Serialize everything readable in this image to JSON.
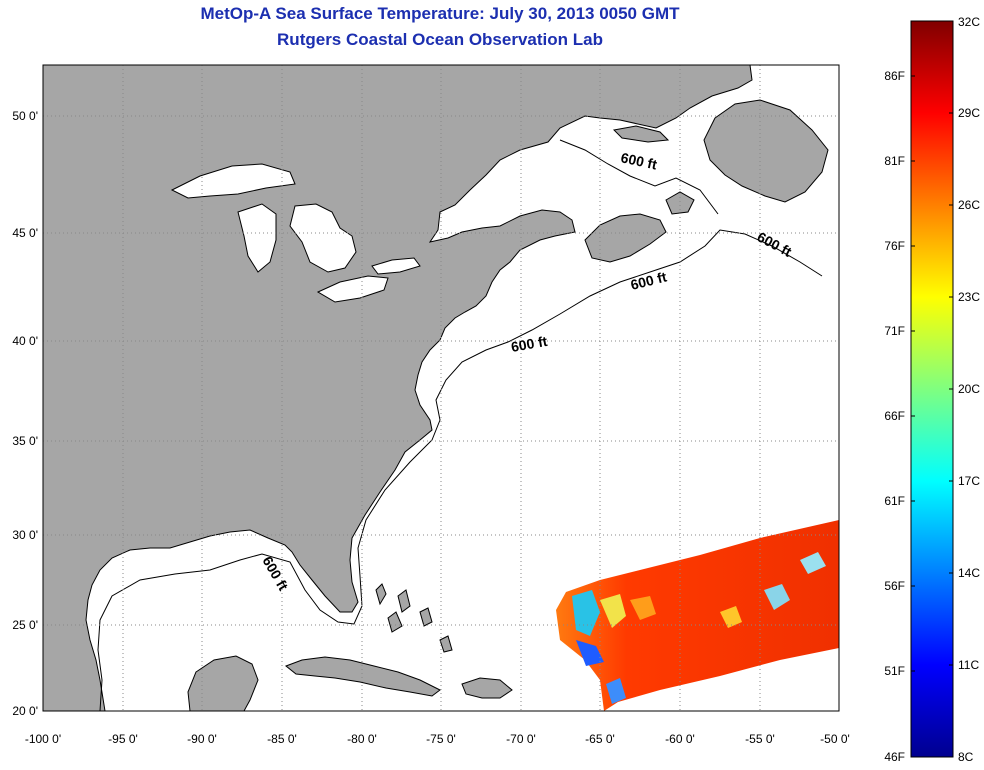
{
  "title": "MetOp-A Sea Surface Temperature:  July 30, 2013 0050 GMT",
  "subtitle": "Rutgers Coastal Ocean Observation Lab",
  "map": {
    "lon_labels": [
      "-100 0'",
      "-95 0'",
      "-90 0'",
      "-85 0'",
      "-80 0'",
      "-75 0'",
      "-70 0'",
      "-65 0'",
      "-60 0'",
      "-55 0'",
      "-50 0'"
    ],
    "lat_labels": [
      "50 0'",
      "45 0'",
      "40 0'",
      "35 0'",
      "30 0'",
      "25 0'",
      "20 0'"
    ],
    "land_color": "#a6a6a6",
    "ocean_color": "#ffffff",
    "depth_contour_labels": [
      "600 ft",
      "600 ft",
      "600 ft",
      "600 ft",
      "600 ft"
    ]
  },
  "colorbar": {
    "fahrenheit_labels": [
      "86F",
      "81F",
      "76F",
      "71F",
      "66F",
      "61F",
      "56F",
      "51F",
      "46F"
    ],
    "celsius_labels": [
      "32C",
      "29C",
      "26C",
      "23C",
      "20C",
      "17C",
      "14C",
      "11C",
      "8C"
    ]
  }
}
